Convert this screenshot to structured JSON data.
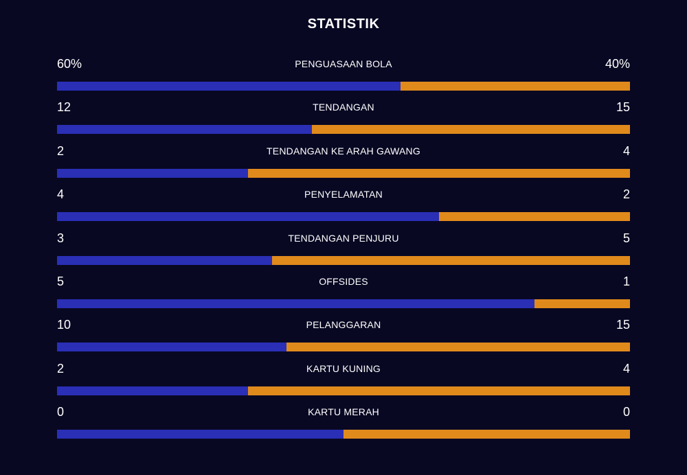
{
  "header": {
    "title": "STATISTIK"
  },
  "colors": {
    "background": "#080823",
    "home": "#2a2fb6",
    "away": "#e08a1c",
    "text": "#ffffff"
  },
  "stats": [
    {
      "label": "PENGUASAAN BOLA",
      "home": "60%",
      "away": "40%",
      "home_share": 0.6
    },
    {
      "label": "TENDANGAN",
      "home": "12",
      "away": "15",
      "home_share": 0.4444
    },
    {
      "label": "TENDANGAN KE ARAH GAWANG",
      "home": "2",
      "away": "4",
      "home_share": 0.3333
    },
    {
      "label": "PENYELAMATAN",
      "home": "4",
      "away": "2",
      "home_share": 0.6667
    },
    {
      "label": "TENDANGAN PENJURU",
      "home": "3",
      "away": "5",
      "home_share": 0.375
    },
    {
      "label": "OFFSIDES",
      "home": "5",
      "away": "1",
      "home_share": 0.8333
    },
    {
      "label": "PELANGGARAN",
      "home": "10",
      "away": "15",
      "home_share": 0.4
    },
    {
      "label": "KARTU KUNING",
      "home": "2",
      "away": "4",
      "home_share": 0.3333
    },
    {
      "label": "KARTU MERAH",
      "home": "0",
      "away": "0",
      "home_share": 0.5
    }
  ]
}
